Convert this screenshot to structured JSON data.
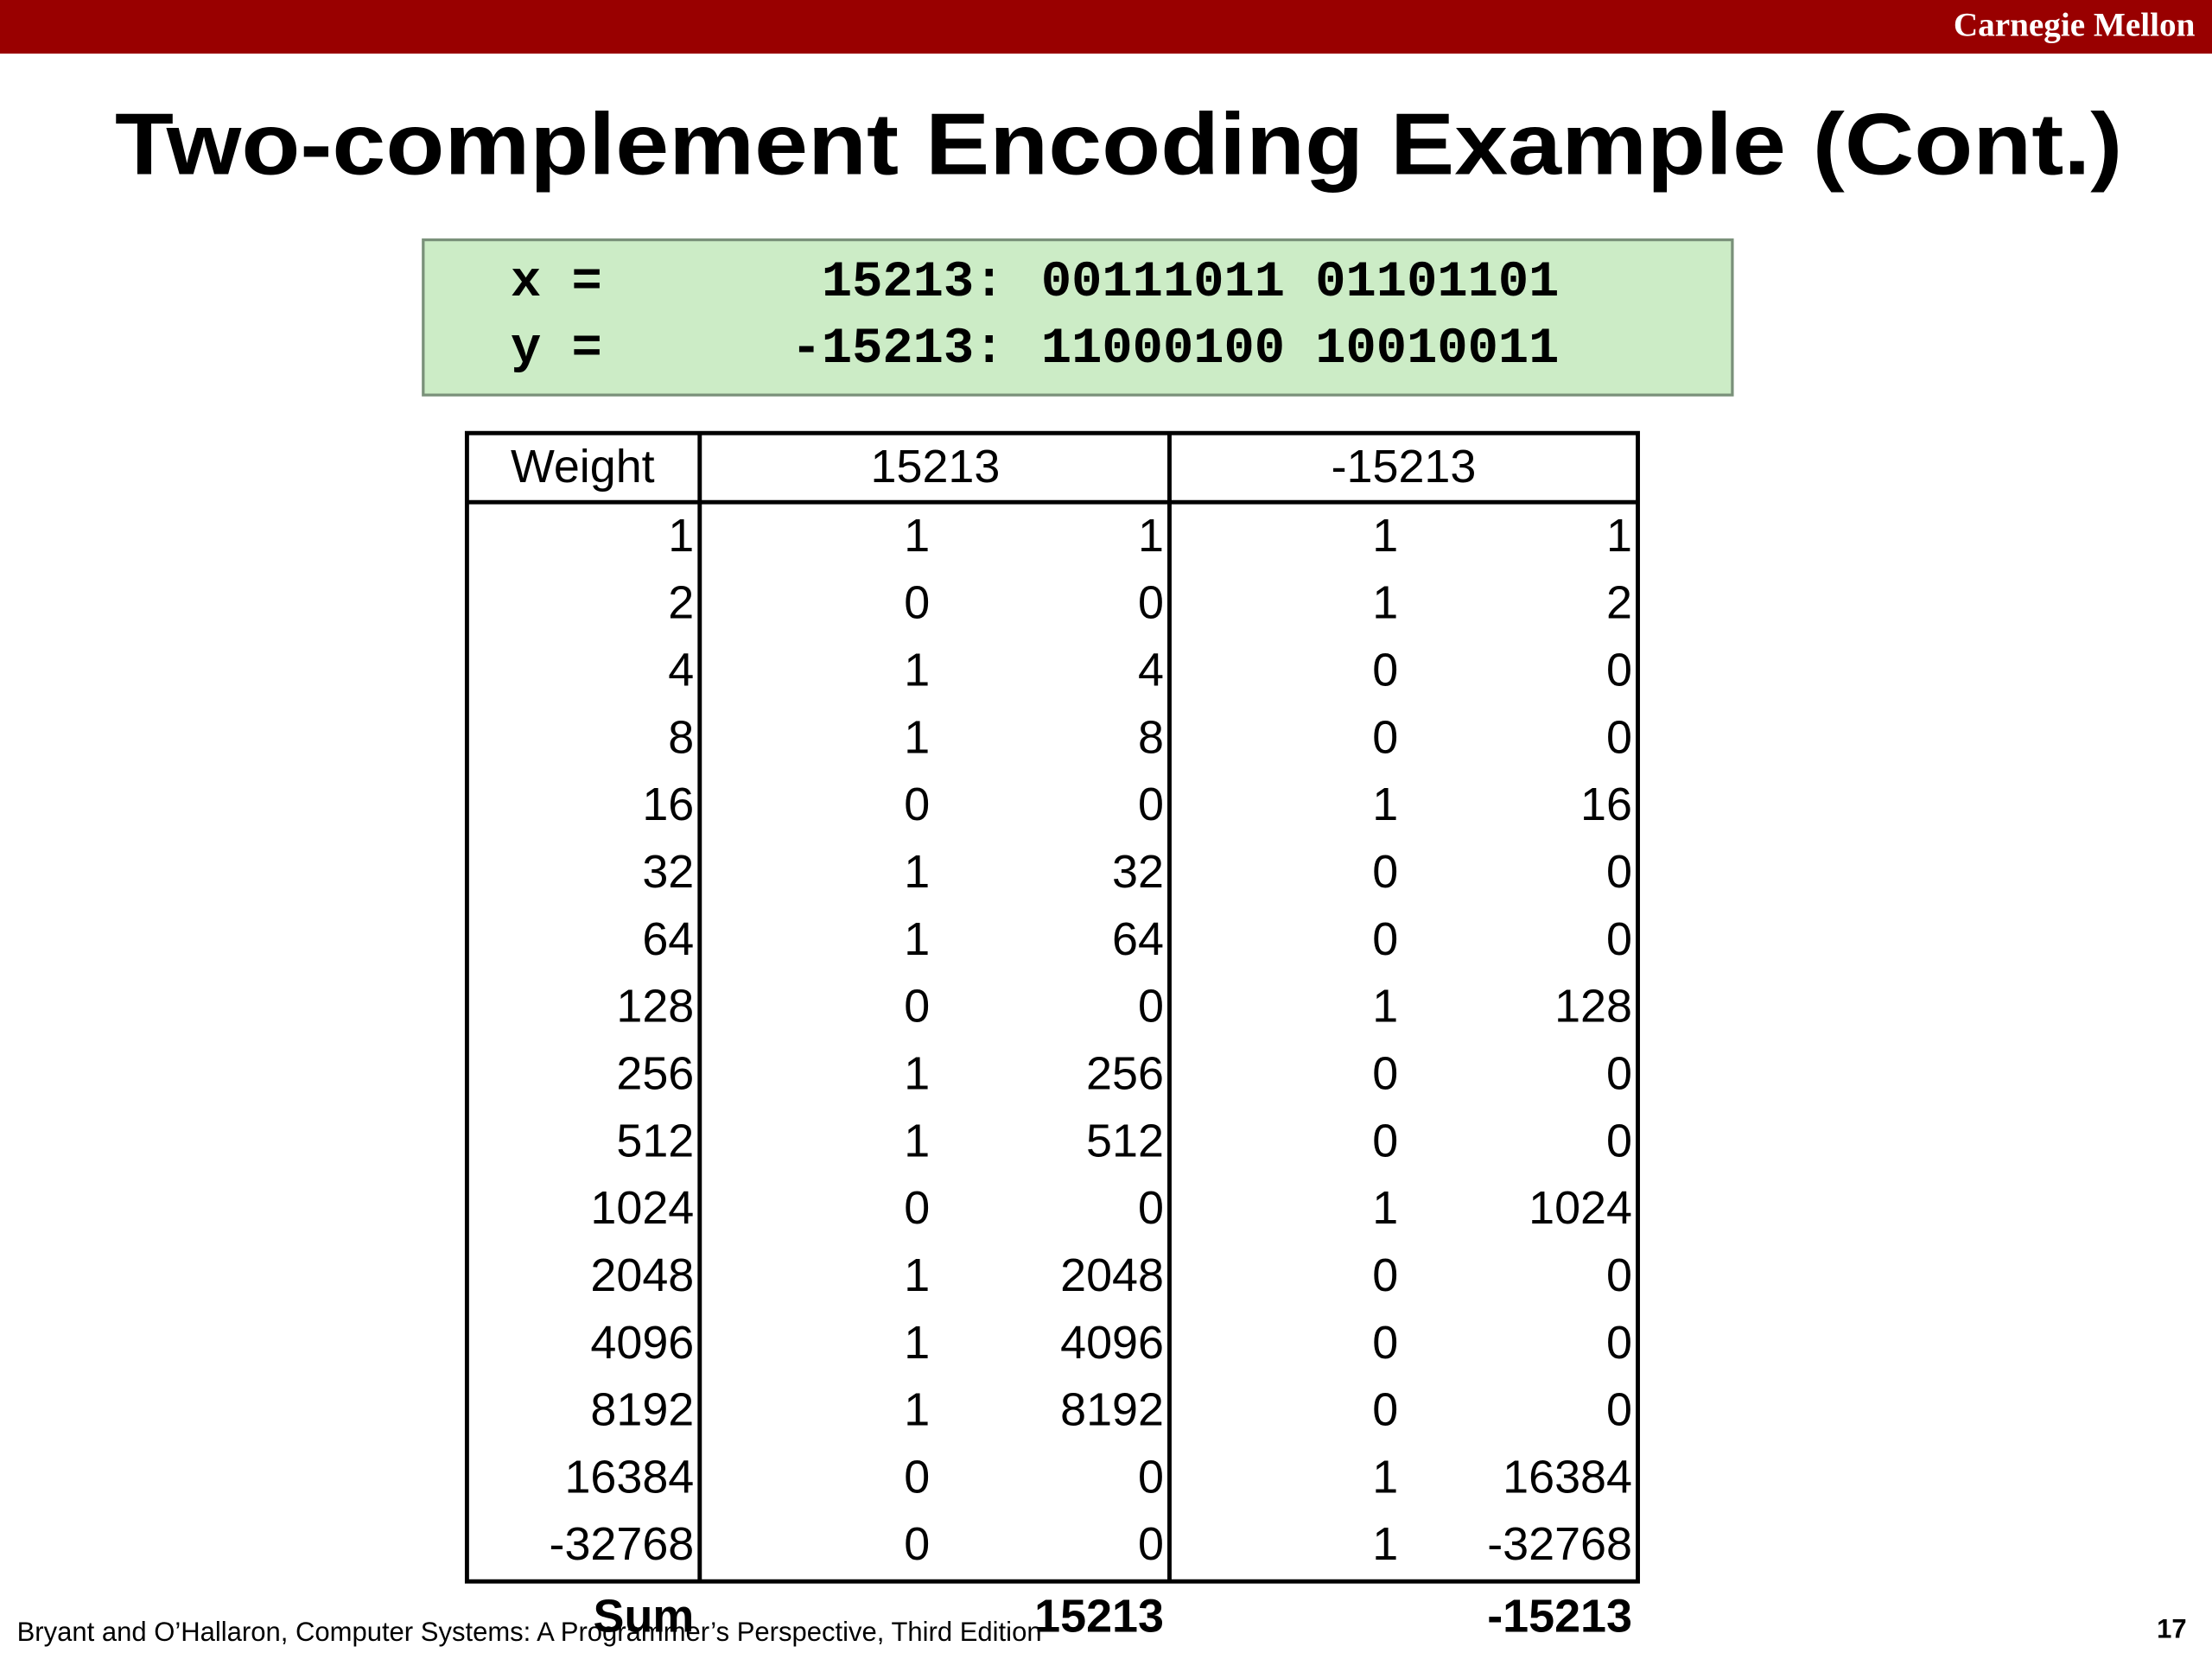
{
  "header": {
    "brand": "Carnegie Mellon"
  },
  "title": "Two-complement Encoding Example (Cont.)",
  "code": {
    "lines": [
      [
        "x =",
        "15213:",
        "00111011 01101101"
      ],
      [
        "y =",
        "-15213:",
        "11000100 10010011"
      ]
    ]
  },
  "table": {
    "header": [
      "Weight",
      "15213",
      "-15213"
    ],
    "rows": [
      [
        1,
        1,
        1,
        1,
        1
      ],
      [
        2,
        0,
        0,
        1,
        2
      ],
      [
        4,
        1,
        4,
        0,
        0
      ],
      [
        8,
        1,
        8,
        0,
        0
      ],
      [
        16,
        0,
        0,
        1,
        16
      ],
      [
        32,
        1,
        32,
        0,
        0
      ],
      [
        64,
        1,
        64,
        0,
        0
      ],
      [
        128,
        0,
        0,
        1,
        128
      ],
      [
        256,
        1,
        256,
        0,
        0
      ],
      [
        512,
        1,
        512,
        0,
        0
      ],
      [
        1024,
        0,
        0,
        1,
        1024
      ],
      [
        2048,
        1,
        2048,
        0,
        0
      ],
      [
        4096,
        1,
        4096,
        0,
        0
      ],
      [
        8192,
        1,
        8192,
        0,
        0
      ],
      [
        16384,
        0,
        0,
        1,
        16384
      ],
      [
        -32768,
        0,
        0,
        1,
        -32768
      ]
    ],
    "sum": [
      "Sum",
      15213,
      -15213
    ]
  },
  "footer": {
    "citation": "Bryant and O’Hallaron, Computer Systems: A Programmer’s Perspective, Third Edition",
    "page": "17"
  }
}
